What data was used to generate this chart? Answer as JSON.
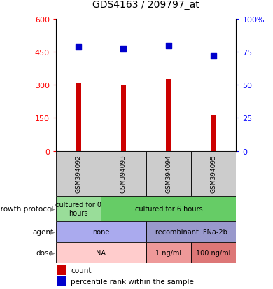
{
  "title": "GDS4163 / 209797_at",
  "samples": [
    "GSM394092",
    "GSM394093",
    "GSM394094",
    "GSM394095"
  ],
  "bar_values": [
    308,
    298,
    325,
    162
  ],
  "percentile_values": [
    79,
    77,
    80,
    72
  ],
  "ylim_left": [
    0,
    600
  ],
  "ylim_right": [
    0,
    100
  ],
  "yticks_left": [
    0,
    150,
    300,
    450,
    600
  ],
  "yticks_right": [
    0,
    25,
    50,
    75,
    100
  ],
  "bar_color": "#cc0000",
  "dot_color": "#0000cc",
  "bar_width": 0.12,
  "growth_protocol": [
    {
      "label": "cultured for 0\nhours",
      "span": [
        0,
        1
      ],
      "color": "#99dd99"
    },
    {
      "label": "cultured for 6 hours",
      "span": [
        1,
        4
      ],
      "color": "#66cc66"
    }
  ],
  "agent": [
    {
      "label": "none",
      "span": [
        0,
        2
      ],
      "color": "#aaaaee"
    },
    {
      "label": "recombinant IFNa-2b",
      "span": [
        2,
        4
      ],
      "color": "#9999cc"
    }
  ],
  "dose": [
    {
      "label": "NA",
      "span": [
        0,
        2
      ],
      "color": "#ffcccc"
    },
    {
      "label": "1 ng/ml",
      "span": [
        2,
        3
      ],
      "color": "#ee9999"
    },
    {
      "label": "100 ng/ml",
      "span": [
        3,
        4
      ],
      "color": "#dd7777"
    }
  ]
}
